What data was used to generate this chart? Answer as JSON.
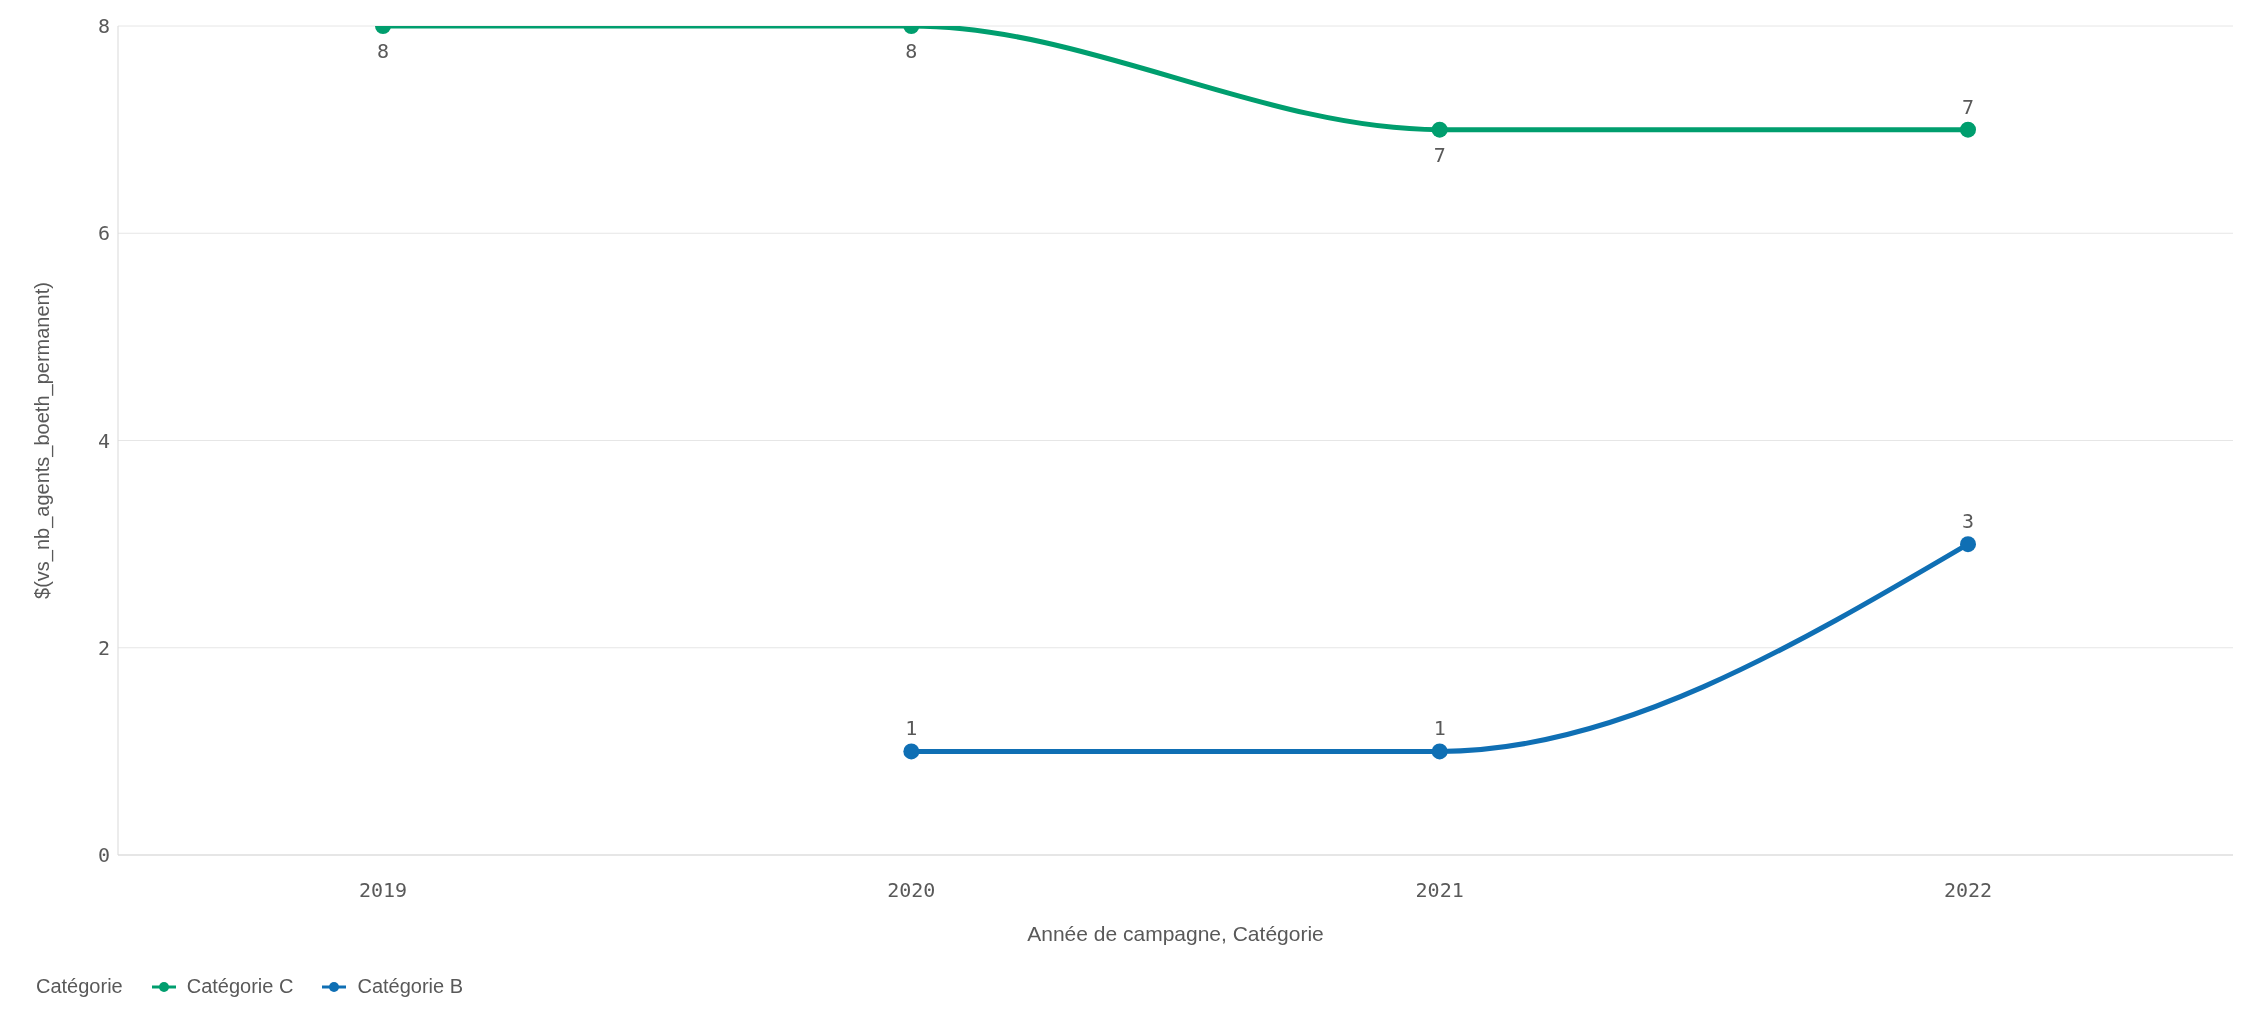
{
  "chart_data": {
    "type": "line",
    "xlabel": "Année de campagne, Catégorie",
    "ylabel": "$(vs_nb_agents_boeth_permanent)",
    "legend_title": "Catégorie",
    "categories": [
      "2019",
      "2020",
      "2021",
      "2022"
    ],
    "series": [
      {
        "name": "Catégorie C",
        "color": "#009e6e",
        "values": [
          8,
          8,
          7,
          7
        ]
      },
      {
        "name": "Catégorie B",
        "color": "#0f6fb4",
        "values": [
          null,
          1,
          1,
          3
        ]
      }
    ],
    "ylim": [
      0,
      8
    ],
    "yticks": [
      0,
      2,
      4,
      6,
      8
    ],
    "grid": "y",
    "legend": "bottom left",
    "marker": "circle",
    "line_style": "solid",
    "data_labels": true
  }
}
